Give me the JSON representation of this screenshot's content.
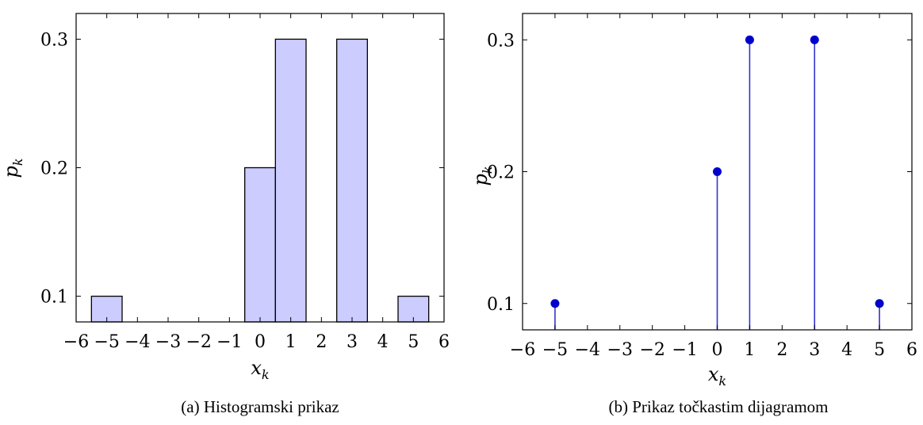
{
  "chart_data": [
    {
      "type": "bar",
      "caption": "(a) Histogramski prikaz",
      "xlabel": "x",
      "xlabel_sub": "k",
      "ylabel": "p",
      "ylabel_sub": "k",
      "xlim": [
        -6,
        6
      ],
      "ylim": [
        0.08,
        0.32
      ],
      "xticks": [
        "−6",
        "−5",
        "−4",
        "−3",
        "−2",
        "−1",
        "0",
        "1",
        "2",
        "3",
        "4",
        "5",
        "6"
      ],
      "yticks": [
        "0.1",
        "0.2",
        "0.3"
      ],
      "x": [
        -5,
        0,
        1,
        3,
        5
      ],
      "values": [
        0.1,
        0.2,
        0.3,
        0.3,
        0.1
      ],
      "bar_width": 1,
      "colors": {
        "fill": "#ccccff",
        "stroke": "#000000"
      }
    },
    {
      "type": "scatter",
      "caption": "(b) Prikaz točkastim dijagramom",
      "xlabel": "x",
      "xlabel_sub": "k",
      "ylabel": "p",
      "ylabel_sub": "k",
      "xlim": [
        -6,
        6
      ],
      "ylim": [
        0.08,
        0.32
      ],
      "xticks": [
        "−6",
        "−5",
        "−4",
        "−3",
        "−2",
        "−1",
        "0",
        "1",
        "2",
        "3",
        "4",
        "5",
        "6"
      ],
      "yticks": [
        "0.1",
        "0.2",
        "0.3"
      ],
      "x": [
        -5,
        0,
        1,
        3,
        5
      ],
      "values": [
        0.1,
        0.2,
        0.3,
        0.3,
        0.1
      ],
      "style": "stem",
      "colors": {
        "marker": "#0000cc",
        "stem": "#3333cc"
      }
    }
  ]
}
